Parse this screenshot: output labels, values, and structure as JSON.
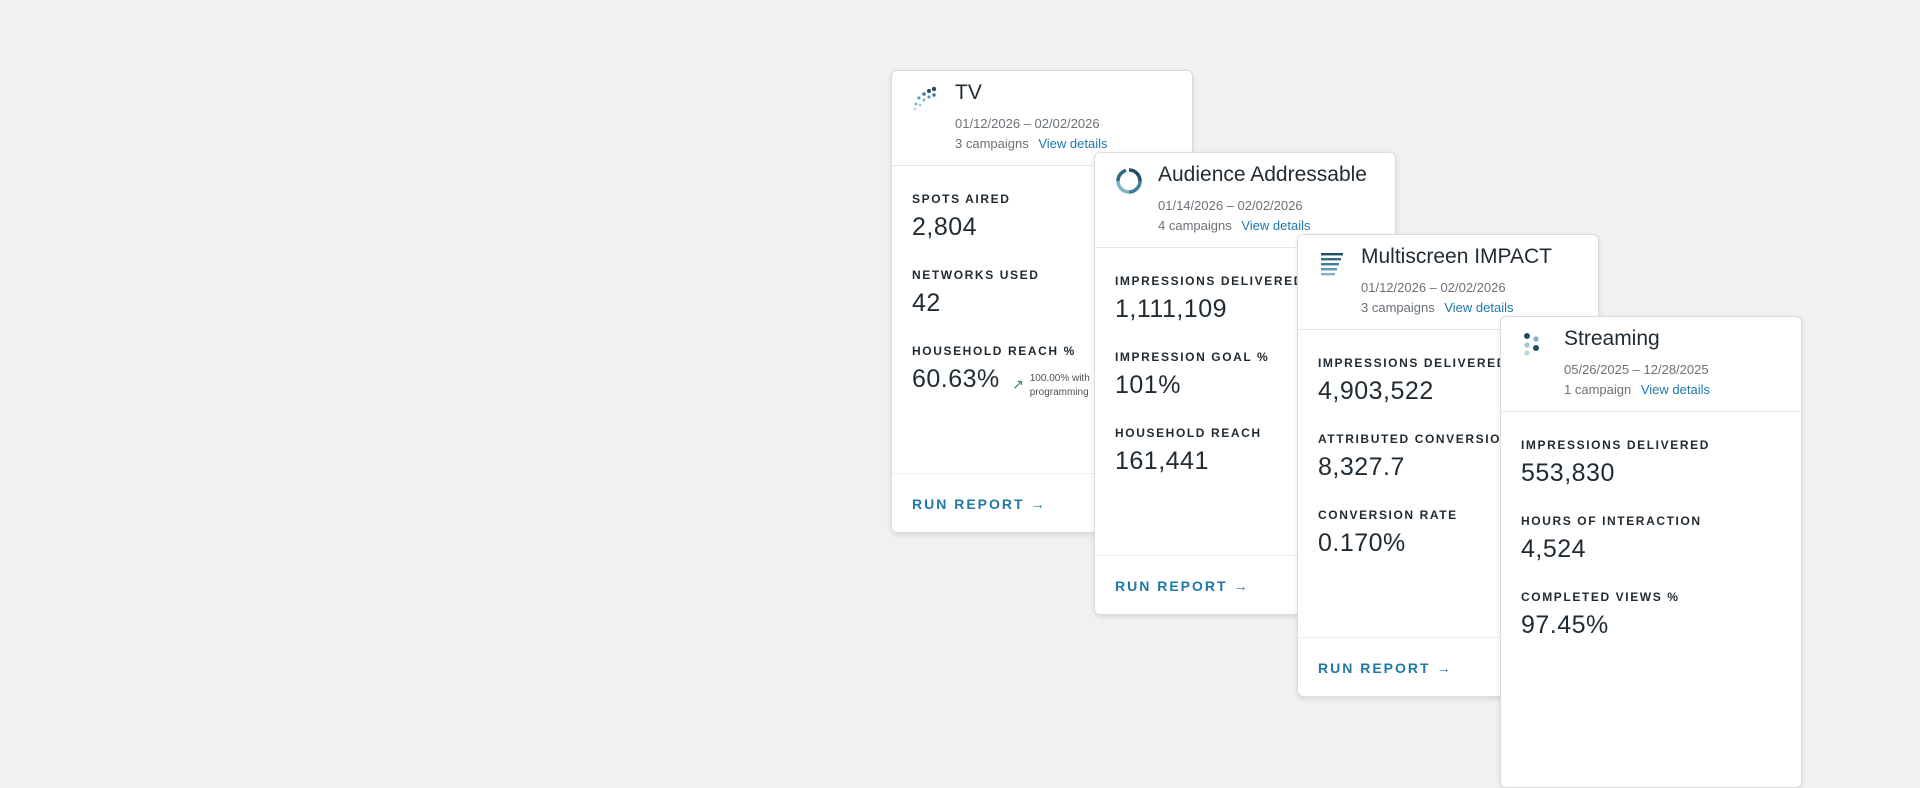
{
  "cards": [
    {
      "title": "TV",
      "dates": "01/12/2026 – 02/02/2026",
      "campaigns": "3 campaigns",
      "view_details": "View details",
      "icon": "dots-spread-icon",
      "metrics": [
        {
          "label": "SPOTS AIRED",
          "value": "2,804"
        },
        {
          "label": "NETWORKS USED",
          "value": "42"
        },
        {
          "label": "HOUSEHOLD REACH %",
          "value": "60.63%",
          "trend_line1": "100.00% with",
          "trend_line2": "programming"
        }
      ],
      "run_report": "RUN REPORT"
    },
    {
      "title": "Audience Addressable",
      "dates": "01/14/2026 – 02/02/2026",
      "campaigns": "4 campaigns",
      "view_details": "View details",
      "icon": "ring-icon",
      "metrics": [
        {
          "label": "IMPRESSIONS DELIVERED",
          "value": "1,111,109"
        },
        {
          "label": "IMPRESSION GOAL %",
          "value": "101%"
        },
        {
          "label": "HOUSEHOLD REACH",
          "value": "161,441"
        }
      ],
      "run_report": "RUN REPORT"
    },
    {
      "title": "Multiscreen IMPACT",
      "dates": "01/12/2026 – 02/02/2026",
      "campaigns": "3 campaigns",
      "view_details": "View details",
      "icon": "lines-icon",
      "metrics": [
        {
          "label": "IMPRESSIONS DELIVERED",
          "value": "4,903,522"
        },
        {
          "label": "ATTRIBUTED CONVERSIONS",
          "value": "8,327.7"
        },
        {
          "label": "CONVERSION RATE",
          "value": "0.170%"
        }
      ],
      "run_report": "RUN REPORT"
    },
    {
      "title": "Streaming",
      "dates": "05/26/2025 – 12/28/2025",
      "campaigns": "1 campaign",
      "view_details": "View details",
      "icon": "dots-cluster-icon",
      "metrics": [
        {
          "label": "IMPRESSIONS DELIVERED",
          "value": "553,830"
        },
        {
          "label": "HOURS OF INTERACTION",
          "value": "4,524"
        },
        {
          "label": "COMPLETED VIEWS %",
          "value": "97.45%"
        }
      ]
    }
  ],
  "colors": {
    "background": "#f1f1f1",
    "accent": "#1f78a8",
    "trend_up": "#2e8b57",
    "icon_dark": "#1f4e66",
    "icon_light": "#7fb3c9"
  }
}
